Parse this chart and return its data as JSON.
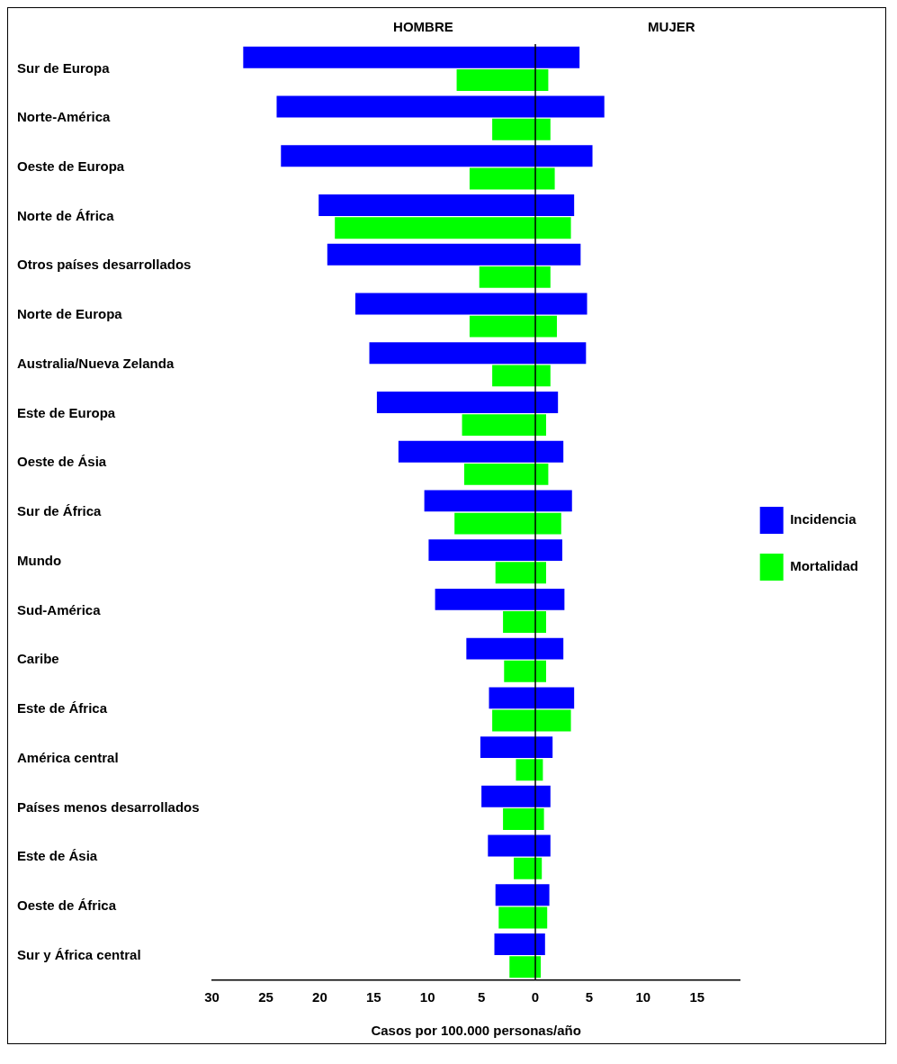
{
  "chart_data": {
    "type": "bar",
    "orientation": "horizontal",
    "xlabel": "Casos por 100.000 personas/año",
    "annotations": [
      "HOMBRE",
      "MUJER"
    ],
    "categories": [
      "Sur de Europa",
      "Norte-América",
      "Oeste de Europa",
      "Norte de África",
      "Otros países desarrollados",
      "Norte de Europa",
      "Australia/Nueva Zelanda",
      "Este de Europa",
      "Oeste de Ásia",
      "Sur de África",
      "Mundo",
      "Sud-América",
      "Caribe",
      "Este de África",
      "América central",
      "Países menos desarrollados",
      "Este de Ásia",
      "Oeste de África",
      "Sur y África central"
    ],
    "series": [
      {
        "name": "Incidencia",
        "color": "#0000ff",
        "base": [
          -27.1,
          -24.0,
          -23.6,
          -20.1,
          -19.3,
          -16.7,
          -15.4,
          -14.7,
          -12.7,
          -10.3,
          -9.9,
          -9.3,
          -6.4,
          -4.3,
          -5.1,
          -5.0,
          -4.4,
          -3.7,
          -3.8
        ],
        "values": [
          31.2,
          30.4,
          28.9,
          23.7,
          23.5,
          21.5,
          20.1,
          16.8,
          15.3,
          13.7,
          12.4,
          12.0,
          9.0,
          7.9,
          6.7,
          6.4,
          5.8,
          5.0,
          4.7
        ]
      },
      {
        "name": "Mortalidad",
        "color": "#00ff00",
        "base": [
          -7.3,
          -4.0,
          -6.1,
          -18.6,
          -5.2,
          -6.1,
          -4.0,
          -6.8,
          -6.6,
          -7.5,
          -3.7,
          -3.0,
          -2.9,
          -4.0,
          -1.8,
          -3.0,
          -2.0,
          -3.4,
          -2.4
        ],
        "values": [
          8.5,
          5.4,
          7.9,
          21.9,
          6.6,
          8.1,
          5.4,
          7.8,
          7.8,
          9.9,
          4.7,
          4.0,
          3.9,
          7.3,
          2.5,
          3.8,
          2.6,
          4.5,
          2.9
        ]
      }
    ],
    "xlim": [
      -30,
      19
    ],
    "xticks": [
      {
        "value": -30,
        "label": "30"
      },
      {
        "value": -25,
        "label": "25"
      },
      {
        "value": -20,
        "label": "20"
      },
      {
        "value": -15,
        "label": "15"
      },
      {
        "value": -10,
        "label": "10"
      },
      {
        "value": -5,
        "label": "5"
      },
      0,
      5,
      10,
      15
    ],
    "ref_lines": [
      {
        "axis": "x",
        "value": 0,
        "color": "#000000"
      }
    ],
    "grid": false,
    "legend": "right"
  }
}
